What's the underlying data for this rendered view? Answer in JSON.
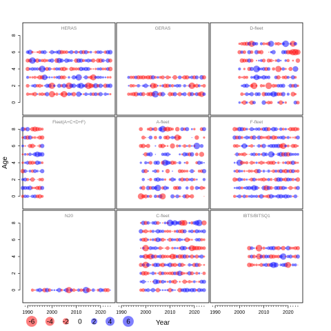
{
  "chart_data": {
    "type": "scatter",
    "variant": "bubble residual plot, 3x3 panels",
    "ylabel": "Age",
    "xlabel": "Year",
    "x_ticks": [
      1990,
      2000,
      2010,
      2020
    ],
    "y_ticks": [
      0,
      2,
      4,
      6,
      8
    ],
    "xlim": [
      1988,
      2026
    ],
    "ylim": [
      -1.5,
      9.5
    ],
    "colors": {
      "negative": "#ff0000",
      "positive": "#0000ff",
      "opacity": 0.5
    },
    "legend": {
      "placement": "bottom-left",
      "values": [
        -6,
        -4,
        -2,
        0,
        2,
        4,
        6
      ],
      "labels": [
        "-6",
        "-4",
        "-2",
        "0",
        "2",
        "4",
        "6"
      ]
    },
    "panels": [
      {
        "title": "HERAS",
        "years": [
          1990,
          2024
        ],
        "ages": [
          1,
          2,
          3,
          4,
          5,
          6
        ],
        "seed": 11
      },
      {
        "title": "GERAS",
        "years": [
          1993,
          2024
        ],
        "ages": [
          1,
          2,
          3
        ],
        "seed": 23
      },
      {
        "title": "D-fleet",
        "years": [
          2000,
          2024
        ],
        "ages": [
          0,
          1,
          2,
          3,
          4,
          5,
          6,
          7
        ],
        "sparse": true,
        "seed": 37
      },
      {
        "title": "Fleet(A+C+D+F)",
        "years": [
          1988,
          1996
        ],
        "ages": [
          0,
          1,
          2,
          3,
          4,
          5,
          6,
          7,
          8
        ],
        "seed": 41
      },
      {
        "title": "A-fleet",
        "years": [
          1998,
          2024
        ],
        "ages": [
          0,
          1,
          2,
          3,
          4,
          5,
          6,
          7,
          8
        ],
        "sparse": true,
        "seed": 53
      },
      {
        "title": "F-fleet",
        "years": [
          1998,
          2024
        ],
        "ages": [
          0,
          1,
          2,
          3,
          4,
          5,
          6,
          7,
          8
        ],
        "seed": 61
      },
      {
        "title": "N20",
        "years": [
          1992,
          2024
        ],
        "ages": [
          0
        ],
        "seed": 71
      },
      {
        "title": "C-fleet",
        "years": [
          1998,
          2024
        ],
        "ages": [
          0,
          1,
          2,
          3,
          4,
          5,
          6,
          7,
          8
        ],
        "seed": 83
      },
      {
        "title": "IBTS/BITSQ1",
        "years": [
          2004,
          2024
        ],
        "ages": [
          3,
          4,
          5
        ],
        "seed": 97
      }
    ]
  }
}
